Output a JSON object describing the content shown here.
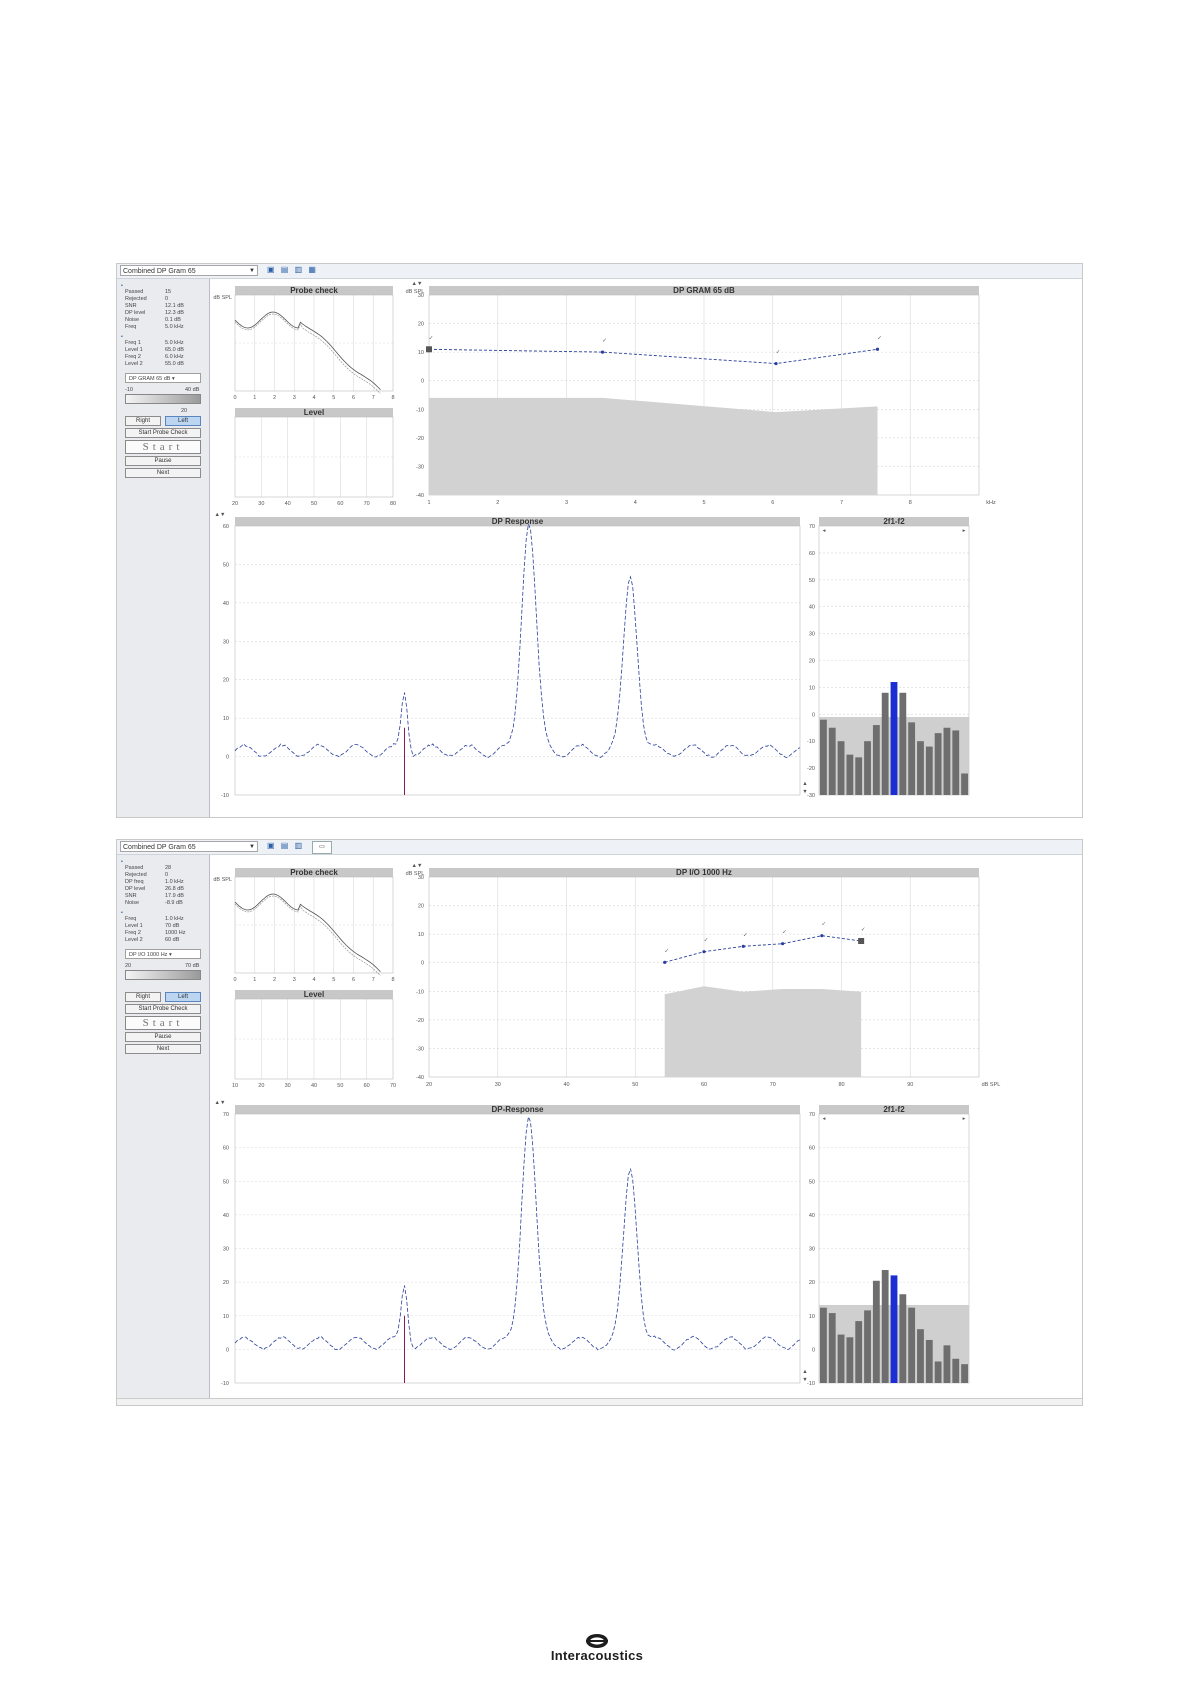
{
  "shots": [
    {
      "protocol": "Combined DP Gram 65",
      "sidebar": {
        "rows": [
          {
            "k": "Passed",
            "v": "15"
          },
          {
            "k": "Rejected",
            "v": "0"
          },
          {
            "k": "SNR",
            "v": "12.1 dB"
          },
          {
            "k": "DP level",
            "v": "12.3 dB"
          },
          {
            "k": "Noise",
            "v": "0.1 dB"
          },
          {
            "k": "Freq",
            "v": "5.0 kHz"
          }
        ],
        "rows2": [
          {
            "k": "Freq 1",
            "v": "5.0 kHz"
          },
          {
            "k": "Level 1",
            "v": "65.0 dB"
          },
          {
            "k": "Freq 2",
            "v": "6.0 kHz"
          },
          {
            "k": "Level 2",
            "v": "55.0 dB"
          }
        ],
        "select": "DP GRAM 65 dB",
        "slider_min": "-10",
        "slider_max": "40 dB",
        "counter": "20",
        "btn_right": "Right",
        "btn_left": "Left",
        "btn_probe": "Start Probe Check",
        "btn_start": "Start",
        "btn_pause": "Pause",
        "btn_next": "Next"
      },
      "titles": {
        "probe": "Probe check",
        "level": "Level",
        "main": "DP GRAM 65 dB",
        "resp": "DP Response",
        "bar": "2f1-f2"
      },
      "probe_x": [
        "0",
        "1",
        "2",
        "3",
        "4",
        "5",
        "6",
        "7",
        "8"
      ],
      "level_x": [
        "20",
        "30",
        "40",
        "50",
        "60",
        "70",
        "80"
      ],
      "main_x": [
        "1",
        "2",
        "3",
        "4",
        "5",
        "6",
        "7",
        "8"
      ],
      "main_y": [
        "30",
        "20",
        "10",
        "0",
        "-10",
        "-20",
        "-30",
        "-40"
      ],
      "resp_y": [
        "60",
        "50",
        "40",
        "30",
        "20",
        "10",
        "0",
        "-10"
      ],
      "bar_y": [
        "70",
        "60",
        "50",
        "40",
        "30",
        "20",
        "10",
        "0",
        "-10",
        "-20",
        "-30"
      ]
    },
    {
      "protocol": "Combined DP Gram 65",
      "sidebar": {
        "rows": [
          {
            "k": "Passed",
            "v": "28"
          },
          {
            "k": "Rejected",
            "v": "0"
          },
          {
            "k": "DP freq",
            "v": "1.0 kHz"
          },
          {
            "k": "DP level",
            "v": "26.8 dB"
          },
          {
            "k": "SNR",
            "v": "17.9 dB"
          },
          {
            "k": "Noise",
            "v": "-8.9 dB"
          }
        ],
        "rows2": [
          {
            "k": "Freq",
            "v": "1.0 kHz"
          },
          {
            "k": "Level 1",
            "v": "70 dB"
          },
          {
            "k": "Freq 2",
            "v": "1000 Hz"
          },
          {
            "k": "Level 2",
            "v": "60 dB"
          }
        ],
        "select": "DP I/O 1000 Hz",
        "slider_min": "20",
        "slider_max": "70 dB",
        "counter": "",
        "btn_right": "Right",
        "btn_left": "Left",
        "btn_probe": "Start Probe Check",
        "btn_start": "Start",
        "btn_pause": "Pause",
        "btn_next": "Next"
      },
      "titles": {
        "probe": "Probe check",
        "level": "Level",
        "main": "DP I/O 1000 Hz",
        "resp": "DP-Response",
        "bar": "2f1-f2"
      },
      "probe_x": [
        "0",
        "1",
        "2",
        "3",
        "4",
        "5",
        "6",
        "7",
        "8"
      ],
      "level_x": [
        "10",
        "20",
        "30",
        "40",
        "50",
        "60",
        "70"
      ],
      "main_x": [
        "20",
        "30",
        "40",
        "50",
        "60",
        "70",
        "80",
        "90"
      ],
      "main_y": [
        "30",
        "20",
        "10",
        "0",
        "-10",
        "-20",
        "-30",
        "-40"
      ],
      "resp_y": [
        "70",
        "60",
        "50",
        "40",
        "30",
        "20",
        "10",
        "0",
        "-10"
      ],
      "bar_y": [
        "70",
        "60",
        "50",
        "40",
        "30",
        "20",
        "10",
        "0",
        "-10"
      ]
    }
  ],
  "chart_data": [
    {
      "type": "line",
      "title": "DP GRAM 65 dB",
      "xlabel": "kHz",
      "ylabel": "dB SPL",
      "x": [
        1,
        2,
        4,
        6
      ],
      "series": [
        {
          "values": [
            11,
            10,
            6,
            11
          ]
        }
      ],
      "noise_floor": {
        "x": [
          1,
          2,
          4,
          6
        ],
        "values": [
          -6,
          -6,
          -11,
          -9
        ]
      },
      "ylim": [
        -40,
        30
      ]
    },
    {
      "type": "line",
      "title": "DP I/O 1000 Hz",
      "xlabel": "dB SPL",
      "ylabel": "dB SPL",
      "x": [
        50,
        55,
        60,
        65,
        70,
        75
      ],
      "series": [
        {
          "values": [
            3,
            7,
            9,
            10,
            13,
            11
          ]
        }
      ],
      "noise_floor": {
        "x": [
          50,
          55,
          60,
          65,
          70,
          75
        ],
        "values": [
          -9,
          -6,
          -8,
          -7,
          -7,
          -8
        ]
      },
      "ylim": [
        -40,
        35
      ]
    }
  ],
  "logo": {
    "text": "Interacoustics"
  }
}
